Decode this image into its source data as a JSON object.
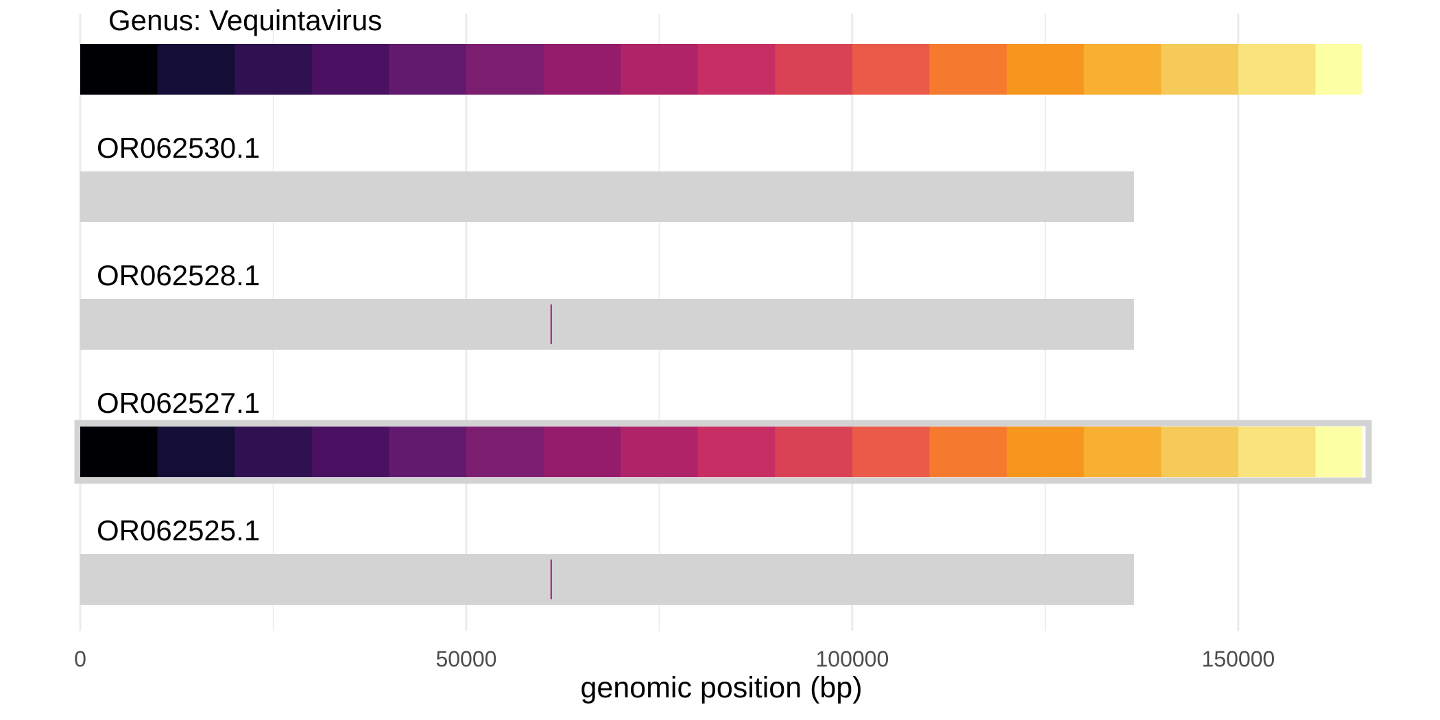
{
  "chart_data": {
    "type": "genome-track",
    "title": "",
    "xlabel": "genomic position (bp)",
    "ylabel": "",
    "xlim": [
      0,
      170000
    ],
    "x_ticks": [
      0,
      50000,
      100000,
      150000
    ],
    "x_tick_labels": [
      "0",
      "50000",
      "100000",
      "150000"
    ],
    "grid": true,
    "segment_colors": [
      "#000004",
      "#140E36",
      "#2F1050",
      "#4A1163",
      "#621A6E",
      "#7B1E6F",
      "#951C6A",
      "#AF2368",
      "#C72E63",
      "#D94155",
      "#EA5A49",
      "#F57A30",
      "#F6961E",
      "#F7B032",
      "#F6CA58",
      "#F9E37C",
      "#FCFFA4"
    ],
    "reference": {
      "name": "Genus: Vequintavirus",
      "start": 0,
      "end": 166000,
      "segment_size": 10000
    },
    "tracks": [
      {
        "name": "OR062530.1",
        "length": 136500,
        "fill": "#D3D3D3",
        "marks": []
      },
      {
        "name": "OR062528.1",
        "length": 136500,
        "fill": "#D3D3D3",
        "marks": [
          {
            "position": 61000,
            "color": "#9B1C72"
          }
        ]
      },
      {
        "name": "OR062527.1",
        "length": 166000,
        "fill": "colored",
        "outline": "#D3D3D3",
        "marks": []
      },
      {
        "name": "OR062525.1",
        "length": 136500,
        "fill": "#D3D3D3",
        "marks": [
          {
            "position": 61000,
            "color": "#9B1C72"
          }
        ]
      }
    ]
  }
}
